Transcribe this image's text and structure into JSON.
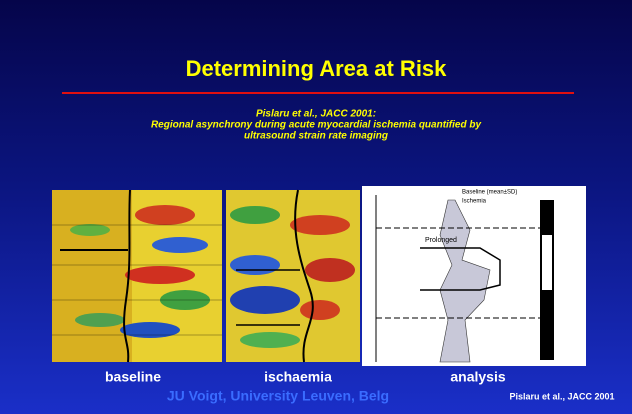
{
  "slide": {
    "title": "Determining Area at Risk",
    "citation": "Pislaru et al., JACC 2001:",
    "subtitle_lines": [
      "Regional asynchrony during acute myocardial ischemia quantified by",
      "ultrasound strain rate imaging"
    ],
    "figure_labels": [
      "baseline",
      "ischaemia",
      "analysis"
    ],
    "analysis_texts": [
      "Baseline (mean±SD)",
      "Ischemia",
      "Prolonged"
    ],
    "footer_author": "JU Voigt, University Leuven, Belg",
    "footer_citation": "Pislaru et al., JACC 2001"
  }
}
